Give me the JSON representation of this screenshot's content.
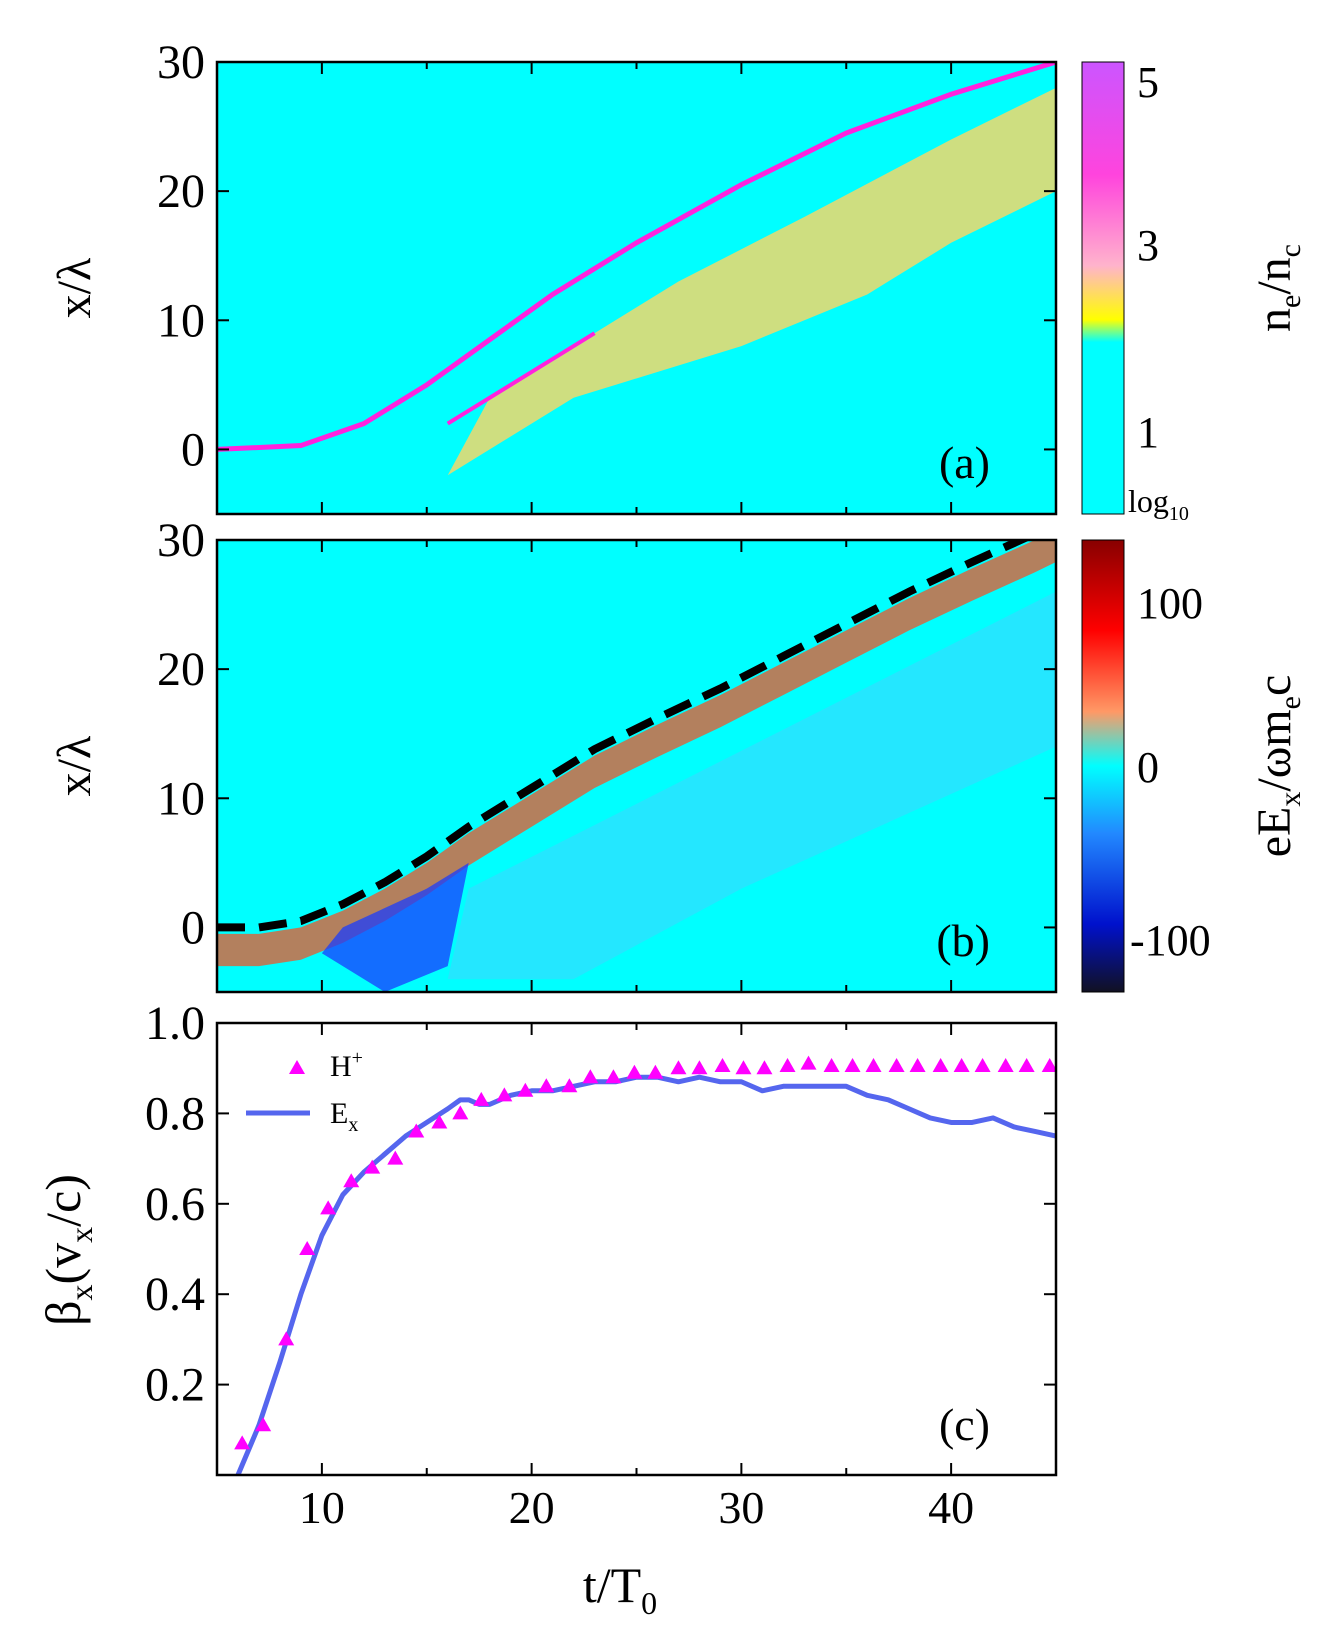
{
  "colors": {
    "background": "#00ffff",
    "density_stripe": "#ff22dd",
    "density_patch": "#f2d86a",
    "field_front": "#ff4a1a",
    "field_trough": "#1a3cff",
    "dashed_line": "#000000",
    "h_plus_marker": "#ff00ff",
    "ex_line": "#5566ee"
  },
  "chart_data": [
    {
      "id": "a",
      "type": "heatmap",
      "panel_label": "(a)",
      "title": "",
      "xlabel": "",
      "ylabel": "x/λ",
      "xlim": [
        5,
        45
      ],
      "ylim": [
        -5,
        30
      ],
      "y_ticks": [
        "0",
        "10",
        "20",
        "30"
      ],
      "colorbar": {
        "label_main": "n",
        "label_sub1": "e",
        "label_mid": "/n",
        "label_sub2": "c",
        "ticks": [
          "1",
          "3",
          "5"
        ],
        "scale_note_main": "log",
        "scale_note_sub": "10",
        "range": [
          0.1,
          5
        ],
        "stops": [
          "#00ffff",
          "#ffff00",
          "#ff99cc",
          "#ff00ff",
          "#cc55ff"
        ]
      },
      "features": {
        "main_stripe": [
          [
            5,
            0
          ],
          [
            9,
            0.3
          ],
          [
            12,
            2
          ],
          [
            15,
            5
          ],
          [
            18,
            8.5
          ],
          [
            21,
            12
          ],
          [
            25,
            16
          ],
          [
            30,
            20.5
          ],
          [
            35,
            24.5
          ],
          [
            40,
            27.5
          ],
          [
            45,
            30
          ]
        ],
        "second_stripe": [
          [
            16,
            2
          ],
          [
            20,
            6
          ],
          [
            23,
            9
          ]
        ],
        "patch_region": [
          [
            16,
            -2
          ],
          [
            18,
            0
          ],
          [
            22,
            4
          ],
          [
            30,
            8
          ],
          [
            36,
            12
          ],
          [
            40,
            16
          ],
          [
            45,
            20
          ],
          [
            45,
            28
          ],
          [
            40,
            24
          ],
          [
            33,
            18
          ],
          [
            27,
            13
          ],
          [
            22,
            8
          ],
          [
            18,
            4
          ]
        ]
      }
    },
    {
      "id": "b",
      "type": "heatmap",
      "panel_label": "(b)",
      "title": "",
      "xlabel": "",
      "ylabel": "x/λ",
      "xlim": [
        5,
        45
      ],
      "ylim": [
        -5,
        30
      ],
      "y_ticks": [
        "0",
        "10",
        "20",
        "30"
      ],
      "colorbar": {
        "label": "eE",
        "label_sub1": "x",
        "label_mid": "/ωm",
        "label_sub2": "e",
        "label_end": "c",
        "ticks": [
          "-100",
          "0",
          "100"
        ],
        "range": [
          -120,
          120
        ],
        "stops": [
          "#111122",
          "#0011cc",
          "#2288ff",
          "#00ffff",
          "#ff8855",
          "#ff0000",
          "#880000"
        ]
      },
      "dashed_front": [
        [
          5,
          0
        ],
        [
          7,
          0
        ],
        [
          9,
          0.5
        ],
        [
          11,
          1.8
        ],
        [
          13,
          3.5
        ],
        [
          15,
          5.5
        ],
        [
          17,
          7.8
        ],
        [
          20,
          10.8
        ],
        [
          23,
          13.8
        ],
        [
          26,
          16.2
        ],
        [
          29,
          18.5
        ],
        [
          32,
          21
        ],
        [
          35,
          23.5
        ],
        [
          38,
          26
        ],
        [
          41,
          28.3
        ],
        [
          44,
          30.5
        ],
        [
          45,
          31.3
        ]
      ]
    },
    {
      "id": "c",
      "type": "line",
      "panel_label": "(c)",
      "title": "",
      "xlabel_main": "t/T",
      "xlabel_sub": "0",
      "ylabel_main": "β",
      "ylabel_sub": "x",
      "ylabel_paren_open": "(v",
      "ylabel_sub2": "x",
      "ylabel_paren_close": "/c)",
      "xlim": [
        5,
        45
      ],
      "ylim": [
        0,
        1
      ],
      "x_ticks": [
        "10",
        "20",
        "30",
        "40"
      ],
      "y_ticks": [
        "0.2",
        "0.4",
        "0.6",
        "0.8",
        "1.0"
      ],
      "series": [
        {
          "name": "H+",
          "legend_main": "H",
          "legend_sup": "+",
          "kind": "scatter",
          "marker": "triangle",
          "x": [
            6.2,
            7.2,
            8.3,
            9.3,
            10.3,
            11.4,
            12.4,
            13.5,
            14.5,
            15.6,
            16.6,
            17.6,
            18.7,
            19.7,
            20.7,
            21.8,
            22.8,
            23.9,
            24.9,
            25.9,
            27.0,
            28.0,
            29.1,
            30.1,
            31.1,
            32.2,
            33.2,
            34.3,
            35.3,
            36.3,
            37.4,
            38.4,
            39.5,
            40.5,
            41.5,
            42.6,
            43.6,
            44.7
          ],
          "y": [
            0.07,
            0.11,
            0.3,
            0.5,
            0.59,
            0.65,
            0.68,
            0.7,
            0.76,
            0.78,
            0.8,
            0.83,
            0.84,
            0.85,
            0.86,
            0.86,
            0.88,
            0.88,
            0.89,
            0.89,
            0.9,
            0.9,
            0.905,
            0.9,
            0.9,
            0.905,
            0.91,
            0.905,
            0.905,
            0.905,
            0.905,
            0.905,
            0.905,
            0.905,
            0.905,
            0.905,
            0.905,
            0.905
          ]
        },
        {
          "name": "Ex",
          "legend_main": "E",
          "legend_sub": "x",
          "kind": "line",
          "x": [
            6.0,
            7.0,
            8.0,
            9.0,
            10.0,
            11.0,
            12.0,
            13.0,
            14.0,
            15.0,
            16.0,
            16.6,
            17.0,
            17.5,
            18.0,
            19.0,
            20.0,
            21.0,
            22.0,
            23.0,
            24.0,
            25.0,
            26.0,
            27.0,
            28.0,
            29.0,
            30.0,
            31.0,
            32.0,
            33.0,
            34.0,
            35.0,
            36.0,
            37.0,
            38.0,
            39.0,
            40.0,
            41.0,
            42.0,
            43.0,
            44.0,
            45.0
          ],
          "y": [
            0.0,
            0.11,
            0.25,
            0.4,
            0.53,
            0.62,
            0.67,
            0.71,
            0.75,
            0.78,
            0.81,
            0.83,
            0.83,
            0.82,
            0.82,
            0.84,
            0.85,
            0.85,
            0.86,
            0.87,
            0.87,
            0.88,
            0.88,
            0.87,
            0.88,
            0.87,
            0.87,
            0.85,
            0.86,
            0.86,
            0.86,
            0.86,
            0.84,
            0.83,
            0.81,
            0.79,
            0.78,
            0.78,
            0.79,
            0.77,
            0.76,
            0.75
          ]
        }
      ]
    }
  ]
}
